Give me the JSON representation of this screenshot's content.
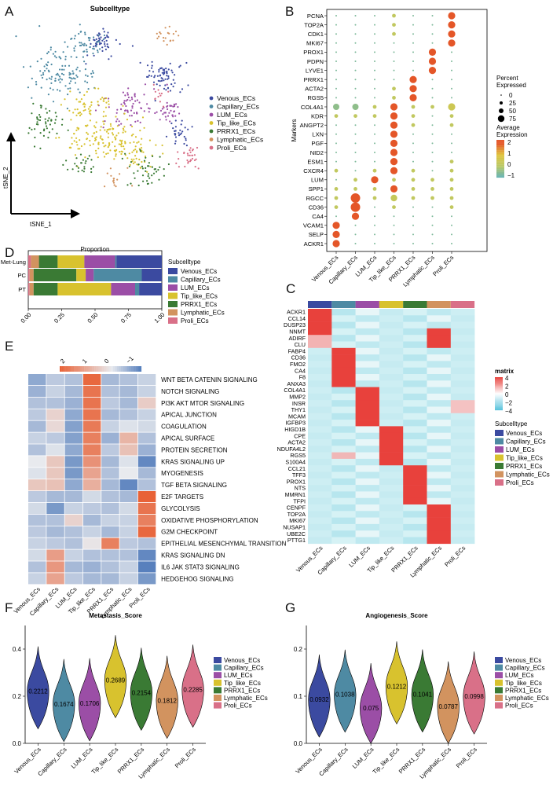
{
  "panels": {
    "A": "A",
    "B": "B",
    "C": "C",
    "D": "D",
    "E": "E",
    "F": "F",
    "G": "G"
  },
  "colors": {
    "Venous_ECs": "#3b4aa0",
    "Capillary_ECs": "#4e8aa3",
    "LUM_ECs": "#9b4ea6",
    "Tip_like_ECs": "#d8c22e",
    "PRRX1_ECs": "#3a7a34",
    "Lymphatic_ECs": "#d2935f",
    "Proli_ECs": "#d97088"
  },
  "legend_items": [
    "Venous_ECs",
    "Capillary_ECs",
    "LUM_ECs",
    "Tip_like_ECs",
    "PRRX1_ECs",
    "Lymphatic_ECs",
    "Proli_ECs"
  ],
  "tsne": {
    "title": "Subcelltype",
    "xlabel": "tSNE_1",
    "ylabel": "tSNE_2"
  },
  "chart_data": [
    {
      "id": "B",
      "type": "scatter",
      "subtype": "dotplot",
      "ylabel": "Markers",
      "genes": [
        "PCNA",
        "TOP2A",
        "CDK1",
        "MKI67",
        "PROX1",
        "PDPN",
        "LYVE1",
        "PRRX1",
        "ACTA2",
        "RGS5",
        "COL4A1",
        "KDR",
        "ANGPT2",
        "LXN",
        "PGF",
        "NID2",
        "ESM1",
        "CXCR4",
        "LUM",
        "SPP1",
        "RGCC",
        "CD36",
        "CA4",
        "VCAM1",
        "SELP",
        "ACKR1"
      ],
      "groups": [
        "Venous_ECs",
        "Capillary_ECs",
        "LUM_ECs",
        "Tip_like_ECs",
        "PRRX1_ECs",
        "Lymphatic_ECs",
        "Proli_ECs"
      ],
      "legend_size_title": "Percent Expressed",
      "size_ticks": [
        0,
        25,
        50,
        75
      ],
      "legend_color_title": "Average Expression",
      "color_ticks": [
        2,
        1,
        0,
        -1
      ]
    },
    {
      "id": "C",
      "type": "heatmap",
      "genes": [
        "ACKR1",
        "CCL14",
        "DUSP23",
        "NNMT",
        "ADIRF",
        "CLU",
        "FABP4",
        "CD36",
        "FMO2",
        "CA4",
        "F8",
        "ANXA3",
        "COL4A1",
        "MMP2",
        "INSR",
        "THY1",
        "MCAM",
        "IGFBP3",
        "HIGD1B",
        "CPE",
        "ACTA2",
        "NDUFA4L2",
        "RGS5",
        "S100A4",
        "CCL21",
        "TFF3",
        "PROX1",
        "NTS",
        "MMRN1",
        "TFPI",
        "CENPF",
        "TOP2A",
        "MKI67",
        "NUSAP1",
        "UBE2C",
        "PTTG1"
      ],
      "groups": [
        "Venous_ECs",
        "Capillary_ECs",
        "LUM_ECs",
        "Tip_like_ECs",
        "PRRX1_ECs",
        "Lymphatic_ECs",
        "Proli_ECs"
      ],
      "legend_title": "matrix",
      "legend_ticks": [
        "4",
        "2",
        "0",
        "−2",
        "−4"
      ],
      "anno_title": "Subcelltype"
    },
    {
      "id": "D",
      "type": "bar",
      "subtype": "stacked-horizontal",
      "title": "Proportion",
      "categories": [
        "Met-Lung",
        "PC",
        "PT"
      ],
      "xticks": [
        "0.00",
        "0.25",
        "0.50",
        "0.75",
        "1.00"
      ],
      "series": [
        {
          "name": "Proli_ECs",
          "values": [
            0.02,
            0.01,
            0.01
          ]
        },
        {
          "name": "Lymphatic_ECs",
          "values": [
            0.06,
            0.03,
            0.03
          ]
        },
        {
          "name": "PRRX1_ECs",
          "values": [
            0.14,
            0.32,
            0.18
          ]
        },
        {
          "name": "Tip_like_ECs",
          "values": [
            0.2,
            0.07,
            0.4
          ]
        },
        {
          "name": "LUM_ECs",
          "values": [
            0.23,
            0.06,
            0.18
          ]
        },
        {
          "name": "Capillary_ECs",
          "values": [
            0.01,
            0.36,
            0.03
          ]
        },
        {
          "name": "Venous_ECs",
          "values": [
            0.34,
            0.15,
            0.17
          ]
        }
      ],
      "legend_title": "Subcelltype"
    },
    {
      "id": "E",
      "type": "heatmap",
      "pathways": [
        "WNT BETA CATENIN SIGNALING",
        "NOTCH SIGNALING",
        "PI3K AKT MTOR SIGNALING",
        "APICAL JUNCTION",
        "COAGULATION",
        "APICAL SURFACE",
        "PROTEIN SECRETION",
        "KRAS SIGNALING UP",
        "MYOGENESIS",
        "TGF BETA SIGNALING",
        "E2F TARGETS",
        "GLYCOLYSIS",
        "OXIDATIVE PHOSPHORYLATION",
        "G2M CHECKPOINT",
        "EPITHELIAL MESENCHYMAL TRANSITION",
        "KRAS SIGNALING DN",
        "IL6 JAK STAT3 SIGNALING",
        "HEDGEHOG SIGNALING"
      ],
      "groups": [
        "Venous_ECs",
        "Capillary_ECs",
        "LUM_ECs",
        "Tip_like_ECs",
        "PRRX1_ECs",
        "Lymphatic_ECs",
        "Proli_ECs"
      ],
      "legend_ticks": [
        "2",
        "1",
        "0",
        "−1"
      ],
      "values": [
        [
          -0.8,
          -0.4,
          -0.5,
          2.2,
          -0.6,
          -0.5,
          -0.3
        ],
        [
          -0.7,
          -0.3,
          -0.6,
          2.0,
          -0.5,
          -0.6,
          -0.3
        ],
        [
          -0.5,
          -0.5,
          -0.7,
          2.0,
          -0.4,
          -0.6,
          0.5
        ],
        [
          -0.4,
          0.4,
          -0.8,
          2.0,
          -0.6,
          -0.5,
          -0.3
        ],
        [
          -0.6,
          0.3,
          -0.9,
          1.9,
          -0.3,
          -0.1,
          -0.2
        ],
        [
          -0.3,
          -0.4,
          -0.9,
          1.8,
          -0.7,
          0.9,
          -0.5
        ],
        [
          -0.5,
          -0.1,
          -0.8,
          1.8,
          -0.4,
          0.7,
          -0.7
        ],
        [
          0.0,
          0.6,
          -1.0,
          1.5,
          -0.6,
          -0.1,
          -1.2
        ],
        [
          -0.1,
          0.6,
          -1.0,
          1.2,
          -0.5,
          0.0,
          -0.6
        ],
        [
          0.6,
          0.7,
          -0.8,
          1.0,
          -0.6,
          -1.2,
          -0.5
        ],
        [
          -0.4,
          -0.6,
          -0.6,
          -0.2,
          -0.5,
          -0.6,
          2.3
        ],
        [
          -0.2,
          -1.0,
          -0.3,
          -0.4,
          -0.5,
          -0.2,
          2.0
        ],
        [
          -0.5,
          -0.5,
          0.4,
          -0.6,
          -0.3,
          -0.3,
          1.8
        ],
        [
          -0.4,
          -0.6,
          -0.5,
          -0.3,
          -0.6,
          -0.3,
          2.2
        ],
        [
          -0.3,
          -0.4,
          -0.5,
          0.1,
          1.8,
          -0.4,
          -0.5
        ],
        [
          -0.2,
          1.3,
          -0.3,
          -0.5,
          -0.5,
          -0.5,
          -1.2
        ],
        [
          -0.5,
          1.4,
          -0.6,
          -0.7,
          -0.5,
          -0.3,
          -1.3
        ],
        [
          -0.3,
          1.2,
          -0.4,
          -0.6,
          -0.6,
          -0.3,
          -1.0
        ]
      ]
    },
    {
      "id": "F",
      "type": "violin",
      "title": "Metastasis_Score",
      "categories": [
        "Venous_ECs",
        "Capillary_ECs",
        "LUM_ECs",
        "Tip_like_ECs",
        "PRRX1_ECs",
        "Lymphatic_ECs",
        "Proli_ECs"
      ],
      "values": [
        0.2212,
        0.1674,
        0.1706,
        0.2689,
        0.2154,
        0.1812,
        0.2285
      ],
      "value_labels": [
        "0.2212",
        "0.1674",
        "0.1706",
        "0.2689",
        "0.2154",
        "0.1812",
        "0.2285"
      ],
      "ylim": [
        0,
        0.5
      ],
      "yticks": [
        "0.0",
        "0.2",
        "0.4"
      ]
    },
    {
      "id": "G",
      "type": "violin",
      "title": "Angiogenesis_Score",
      "categories": [
        "Venous_ECs",
        "Capillary_ECs",
        "LUM_ECs",
        "Tip_like_ECs",
        "PRRX1_ECs",
        "Lymphatic_ECs",
        "Proli_ECs"
      ],
      "values": [
        0.0932,
        0.1038,
        0.075,
        0.1212,
        0.1041,
        0.0787,
        0.0998
      ],
      "value_labels": [
        "0.0932",
        "0.1038",
        "0.075",
        "0.1212",
        "0.1041",
        "0.0787",
        "0.0998"
      ],
      "ylim": [
        0,
        0.25
      ],
      "yticks": [
        "0.0",
        "0.1",
        "0.2"
      ]
    }
  ]
}
